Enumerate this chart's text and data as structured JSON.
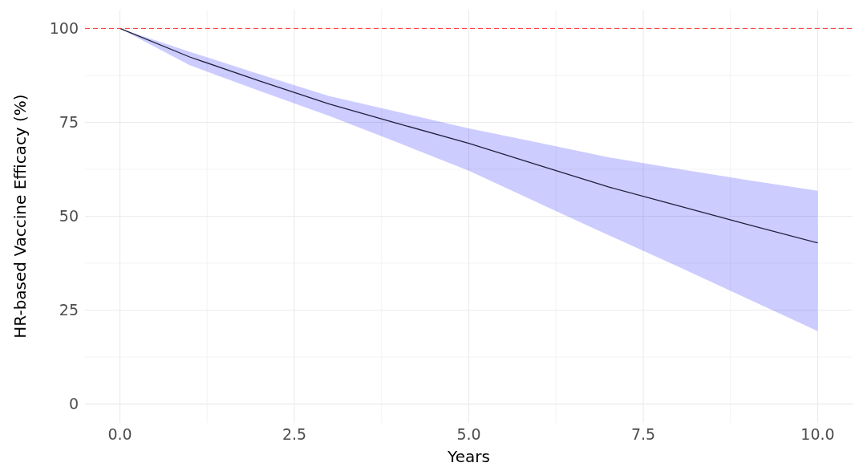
{
  "chart_data": {
    "type": "line",
    "xlabel": "Years",
    "ylabel": "HR-based Vaccine Efficacy (%)",
    "x": [
      0,
      1,
      2,
      3,
      4,
      5,
      6,
      7,
      8,
      9,
      10
    ],
    "series": [
      {
        "color": "#1f1f3d",
        "values": [
          100,
          92.4,
          86,
          79.9,
          74.6,
          69.4,
          63.6,
          57.8,
          52.8,
          47.8,
          42.9
        ],
        "lower": [
          100,
          90.2,
          83.4,
          76.7,
          69.5,
          62.1,
          53.5,
          45.0,
          36.6,
          28,
          19.4
        ],
        "upper": [
          100,
          93.8,
          87.8,
          82,
          77.7,
          73.4,
          69.6,
          65.7,
          62.6,
          59.6,
          56.8
        ]
      }
    ],
    "xlim": [
      -0.5,
      10.5
    ],
    "ylim": [
      -5,
      105
    ],
    "xticks": [
      {
        "value": 0,
        "label": "0.0"
      },
      {
        "value": 1.25,
        "label": null
      },
      {
        "value": 2.5,
        "label": "2.5"
      },
      {
        "value": 3.75,
        "label": null
      },
      {
        "value": 5,
        "label": "5.0"
      },
      {
        "value": 6.25,
        "label": null
      },
      {
        "value": 7.5,
        "label": "7.5"
      },
      {
        "value": 8.75,
        "label": null
      },
      {
        "value": 10,
        "label": "10.0"
      }
    ],
    "yticks": [
      0,
      {
        "value": 12.5,
        "label": null
      },
      25,
      {
        "value": 37.5,
        "label": null
      },
      50,
      {
        "value": 62.5,
        "label": null
      },
      75,
      {
        "value": 87.5,
        "label": null
      },
      100
    ],
    "grid": true,
    "marker": "none",
    "line_style": "solid",
    "ref_lines": [
      {
        "axis": "y",
        "value": 100,
        "color": "#ff3333",
        "line_style": "dashed"
      }
    ]
  }
}
